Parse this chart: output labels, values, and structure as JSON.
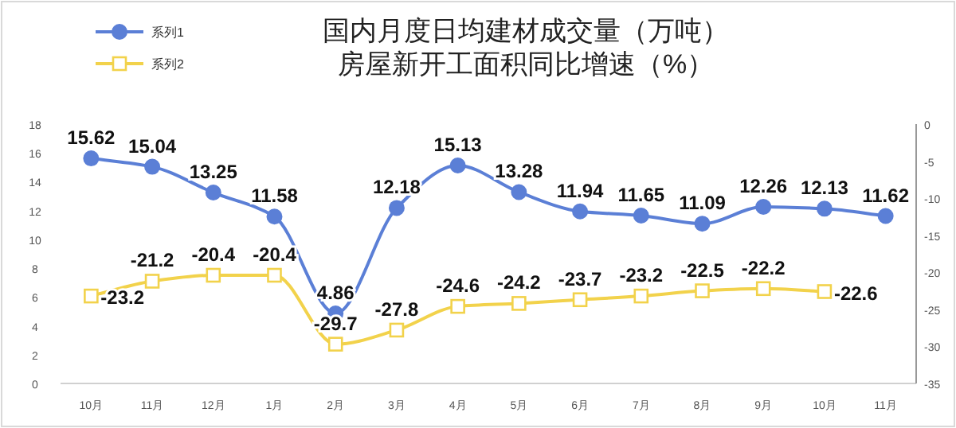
{
  "chart_data": {
    "type": "line",
    "title": "国内月度日均建材成交量（万吨）",
    "subtitle": "房屋新开工面积同比增速（%）",
    "categories": [
      "10月",
      "11月",
      "12月",
      "1月",
      "2月",
      "3月",
      "4月",
      "5月",
      "6月",
      "7月",
      "8月",
      "9月",
      "10月",
      "11月"
    ],
    "series": [
      {
        "name": "系列1",
        "color": "#5b7fd6",
        "marker": "circle",
        "values": [
          15.62,
          15.04,
          13.25,
          11.58,
          4.86,
          12.18,
          15.13,
          13.28,
          11.94,
          11.65,
          11.09,
          12.26,
          12.13,
          11.62
        ]
      },
      {
        "name": "系列2",
        "color": "#f2d24b",
        "marker": "square",
        "axis": "y2",
        "values": [
          -23.2,
          -21.2,
          -20.4,
          -20.4,
          -29.7,
          -27.8,
          -24.6,
          -24.2,
          -23.7,
          -23.2,
          -22.5,
          -22.2,
          -22.6,
          null
        ]
      }
    ],
    "ylim": [
      0,
      18
    ],
    "yticks": [
      0,
      2,
      4,
      6,
      8,
      10,
      12,
      14,
      16,
      18
    ],
    "y2lim": [
      -35,
      0
    ],
    "y2ticks": [
      -35,
      -30,
      -25,
      -20,
      -15,
      -10,
      -5,
      0
    ],
    "data_labels": true,
    "legend": "top left",
    "grid": false
  }
}
